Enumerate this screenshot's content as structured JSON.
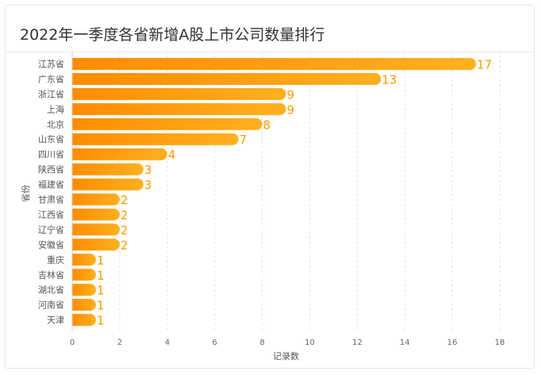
{
  "chart_data": {
    "type": "bar",
    "orientation": "horizontal",
    "title": "2022年一季度各省新增A股上市公司数量排行",
    "xlabel": "记录数",
    "ylabel": "省份",
    "categories": [
      "江苏省",
      "广东省",
      "浙江省",
      "上海",
      "北京",
      "山东省",
      "四川省",
      "陕西省",
      "福建省",
      "甘肃省",
      "江西省",
      "辽宁省",
      "安徽省",
      "重庆",
      "吉林省",
      "湖北省",
      "河南省",
      "天津"
    ],
    "values": [
      17,
      13,
      9,
      9,
      8,
      7,
      4,
      3,
      3,
      2,
      2,
      2,
      2,
      1,
      1,
      1,
      1,
      1
    ],
    "xlim": [
      0,
      18
    ],
    "xticks": [
      0,
      2,
      4,
      6,
      8,
      10,
      12,
      14,
      16,
      18
    ],
    "grid": "vertical-dashed",
    "bar_color_start": "#ff8c00",
    "bar_color_end": "#ffb020",
    "value_label_color": "#ff9900"
  }
}
